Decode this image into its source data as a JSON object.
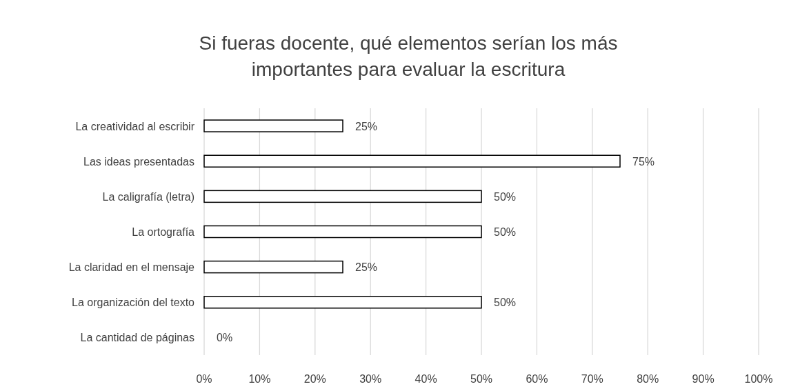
{
  "chart_data": {
    "type": "bar",
    "orientation": "horizontal",
    "title": "Si fueras docente, qué elementos serían los más importantes para evaluar la escritura",
    "categories": [
      "La creatividad al escribir",
      "Las ideas presentadas",
      "La caligrafía (letra)",
      "La ortografía",
      "La claridad en el mensaje",
      "La organización del texto",
      "La cantidad de páginas"
    ],
    "values": [
      25,
      75,
      50,
      50,
      25,
      50,
      0
    ],
    "value_labels": [
      "25%",
      "75%",
      "50%",
      "50%",
      "25%",
      "50%",
      "0%"
    ],
    "color": "#ffffff",
    "xlim": [
      0,
      100
    ],
    "xticks": [
      {
        "value": 0,
        "label": "0%"
      },
      {
        "value": 10,
        "label": "10%"
      },
      {
        "value": 20,
        "label": "20%"
      },
      {
        "value": 30,
        "label": "30%"
      },
      {
        "value": 40,
        "label": "40%"
      },
      {
        "value": 50,
        "label": "50%"
      },
      {
        "value": 60,
        "label": "60%"
      },
      {
        "value": 70,
        "label": "70%"
      },
      {
        "value": 80,
        "label": "80%"
      },
      {
        "value": 90,
        "label": "90%"
      },
      {
        "value": 100,
        "label": "100%"
      }
    ],
    "grid": "x"
  }
}
